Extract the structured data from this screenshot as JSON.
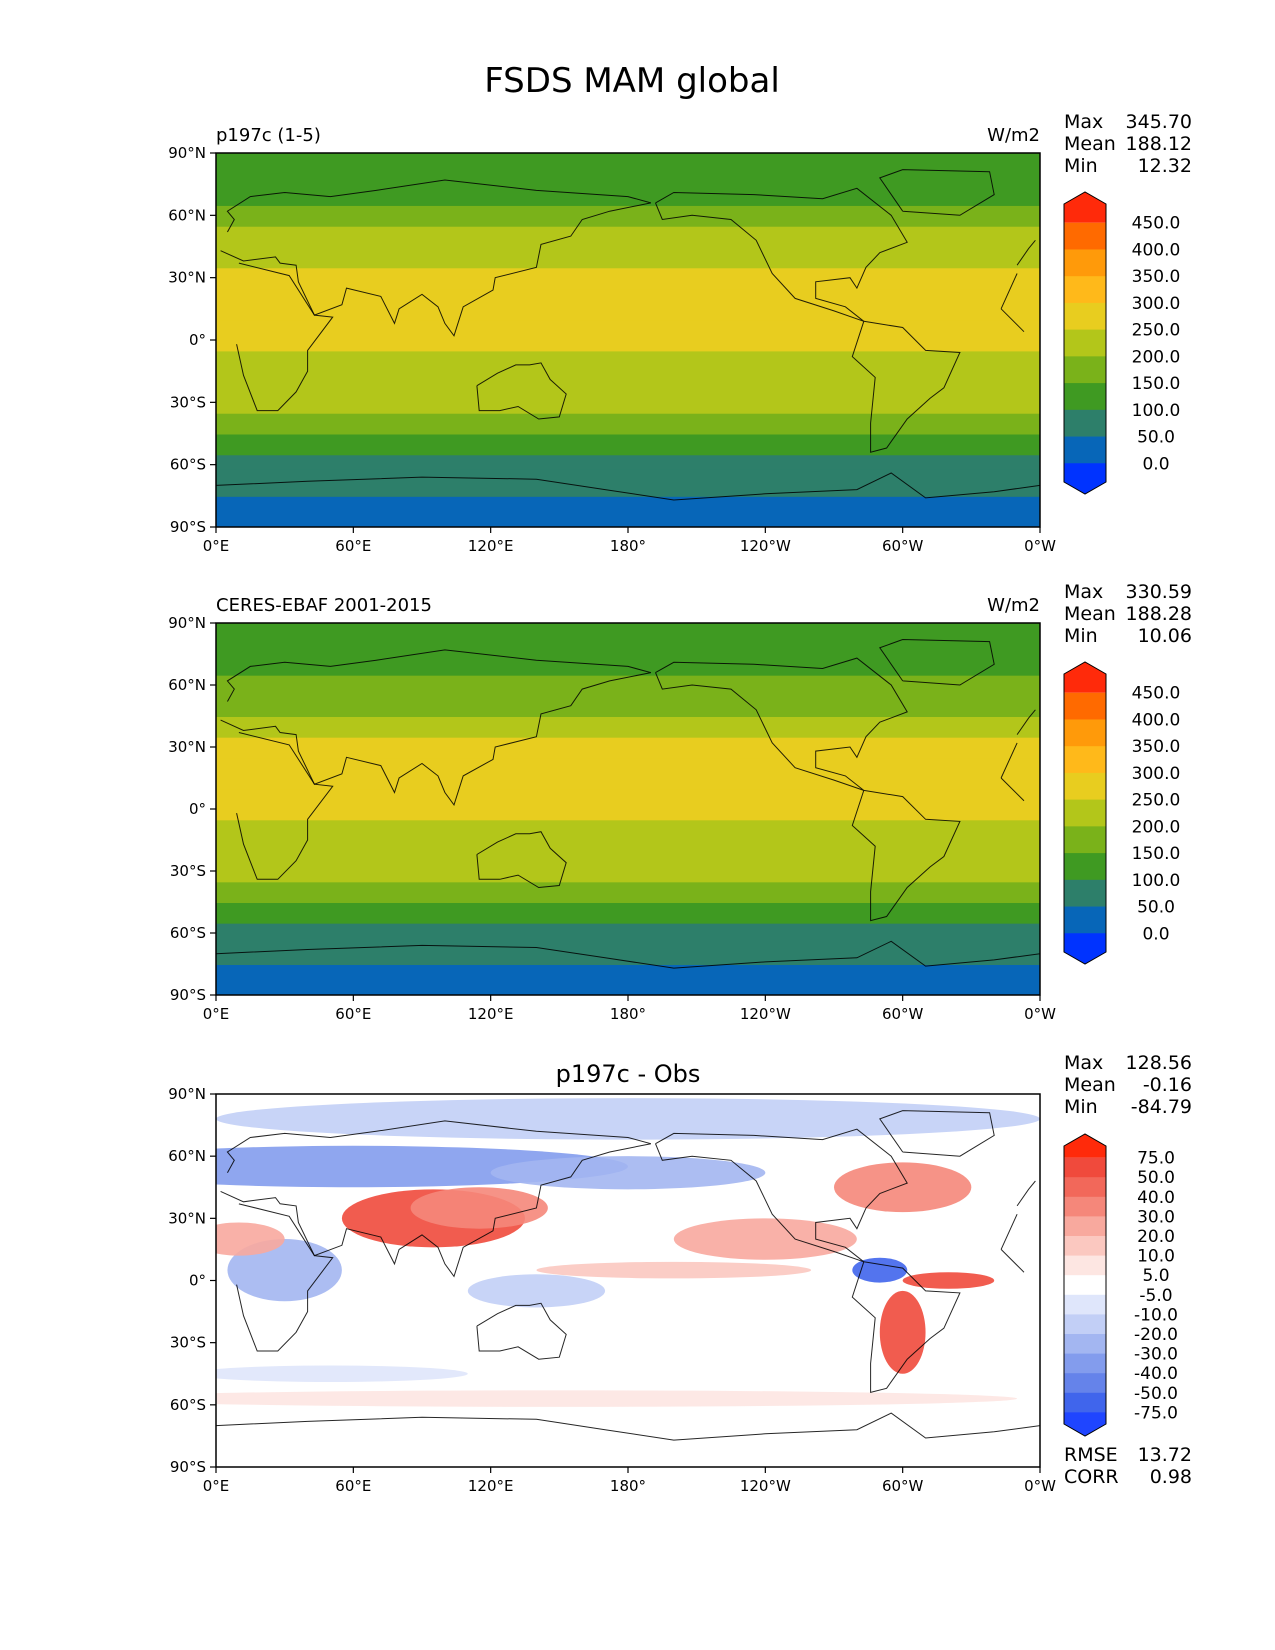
{
  "figure_title": "FSDS MAM global",
  "chart_data": [
    {
      "type": "heatmap",
      "panel_id": "test",
      "left_title": "p197c (1-5)",
      "center_title": "",
      "units": "W/m2",
      "stats": [
        {
          "label": "Max",
          "value": "345.70"
        },
        {
          "label": "Mean",
          "value": "188.12"
        },
        {
          "label": "Min",
          "value": "12.32"
        }
      ],
      "colorbar": {
        "levels": [
          0,
          50,
          100,
          150,
          200,
          250,
          300,
          350,
          400,
          450
        ],
        "tick_labels": [
          "450.0",
          "400.0",
          "350.0",
          "300.0",
          "250.0",
          "200.0",
          "150.0",
          "100.0",
          "50.0",
          "0.0"
        ],
        "colors_top_to_bottom": [
          "#ff2a0a",
          "#ff6a00",
          "#ff9a0a",
          "#ffb91a",
          "#e8cd1f",
          "#b3c61a",
          "#7ab21a",
          "#3f9a22",
          "#2d7f6a",
          "#0766b8",
          "#0033ff"
        ]
      },
      "lat_ticks": [
        "90°N",
        "60°N",
        "30°N",
        "0°",
        "30°S",
        "60°S",
        "90°S"
      ],
      "lon_ticks": [
        "0°E",
        "60°E",
        "120°E",
        "180°",
        "120°W",
        "60°W",
        "0°W"
      ],
      "xlim": [
        0,
        360
      ],
      "ylim": [
        -90,
        90
      ],
      "lat_band_means": [
        {
          "lat": -90,
          "value": 25
        },
        {
          "lat": -75,
          "value": 35
        },
        {
          "lat": -62,
          "value": 75
        },
        {
          "lat": -55,
          "value": 95
        },
        {
          "lat": -45,
          "value": 145
        },
        {
          "lat": -35,
          "value": 185
        },
        {
          "lat": -20,
          "value": 230
        },
        {
          "lat": -5,
          "value": 255
        },
        {
          "lat": 10,
          "value": 255
        },
        {
          "lat": 25,
          "value": 270
        },
        {
          "lat": 35,
          "value": 245
        },
        {
          "lat": 45,
          "value": 215
        },
        {
          "lat": 55,
          "value": 185
        },
        {
          "lat": 65,
          "value": 160
        },
        {
          "lat": 75,
          "value": 125
        },
        {
          "lat": 90,
          "value": 160
        }
      ],
      "rmse": "",
      "corr": ""
    },
    {
      "type": "heatmap",
      "panel_id": "reference",
      "left_title": "CERES-EBAF 2001-2015",
      "center_title": "",
      "units": "W/m2",
      "stats": [
        {
          "label": "Max",
          "value": "330.59"
        },
        {
          "label": "Mean",
          "value": "188.28"
        },
        {
          "label": "Min",
          "value": "10.06"
        }
      ],
      "colorbar": {
        "levels": [
          0,
          50,
          100,
          150,
          200,
          250,
          300,
          350,
          400,
          450
        ],
        "tick_labels": [
          "450.0",
          "400.0",
          "350.0",
          "300.0",
          "250.0",
          "200.0",
          "150.0",
          "100.0",
          "50.0",
          "0.0"
        ],
        "colors_top_to_bottom": [
          "#ff2a0a",
          "#ff6a00",
          "#ff9a0a",
          "#ffb91a",
          "#e8cd1f",
          "#b3c61a",
          "#7ab21a",
          "#3f9a22",
          "#2d7f6a",
          "#0766b8",
          "#0033ff"
        ]
      },
      "lat_ticks": [
        "90°N",
        "60°N",
        "30°N",
        "0°",
        "30°S",
        "60°S",
        "90°S"
      ],
      "lon_ticks": [
        "0°E",
        "60°E",
        "120°E",
        "180°",
        "120°W",
        "60°W",
        "0°W"
      ],
      "xlim": [
        0,
        360
      ],
      "ylim": [
        -90,
        90
      ],
      "lat_band_means": [
        {
          "lat": -90,
          "value": 25
        },
        {
          "lat": -75,
          "value": 35
        },
        {
          "lat": -62,
          "value": 75
        },
        {
          "lat": -55,
          "value": 95
        },
        {
          "lat": -45,
          "value": 145
        },
        {
          "lat": -35,
          "value": 185
        },
        {
          "lat": -20,
          "value": 230
        },
        {
          "lat": -5,
          "value": 250
        },
        {
          "lat": 10,
          "value": 255
        },
        {
          "lat": 25,
          "value": 265
        },
        {
          "lat": 35,
          "value": 240
        },
        {
          "lat": 45,
          "value": 210
        },
        {
          "lat": 55,
          "value": 180
        },
        {
          "lat": 65,
          "value": 160
        },
        {
          "lat": 75,
          "value": 130
        },
        {
          "lat": 90,
          "value": 160
        }
      ],
      "rmse": "",
      "corr": ""
    },
    {
      "type": "heatmap",
      "panel_id": "difference",
      "left_title": "",
      "center_title": "p197c - Obs",
      "units": "",
      "stats": [
        {
          "label": "Max",
          "value": "128.56"
        },
        {
          "label": "Mean",
          "value": "-0.16"
        },
        {
          "label": "Min",
          "value": "-84.79"
        }
      ],
      "colorbar": {
        "levels": [
          -75,
          -50,
          -40,
          -30,
          -20,
          -10,
          -5,
          5,
          10,
          20,
          30,
          40,
          50,
          75
        ],
        "tick_labels": [
          "75.0",
          "50.0",
          "40.0",
          "30.0",
          "20.0",
          "10.0",
          "5.0",
          "-5.0",
          "-10.0",
          "-20.0",
          "-30.0",
          "-40.0",
          "-50.0",
          "-75.0"
        ],
        "colors_top_to_bottom": [
          "#ff2a0a",
          "#f04a3c",
          "#f2685a",
          "#f5877a",
          "#f8a99e",
          "#fbc8c0",
          "#fde6e2",
          "#ffffff",
          "#dfe6fb",
          "#c2cff6",
          "#a3b6f1",
          "#839ced",
          "#6583ea",
          "#4065ec",
          "#1f45ff"
        ]
      },
      "lat_ticks": [
        "90°N",
        "60°N",
        "30°N",
        "0°",
        "30°S",
        "60°S",
        "90°S"
      ],
      "lon_ticks": [
        "0°E",
        "60°E",
        "120°E",
        "180°",
        "120°W",
        "60°W",
        "0°W"
      ],
      "xlim": [
        0,
        360
      ],
      "ylim": [
        -90,
        90
      ],
      "rmse": "13.72",
      "corr": "0.98"
    }
  ],
  "diff_stat_labels": {
    "rmse": "RMSE",
    "corr": "CORR"
  }
}
